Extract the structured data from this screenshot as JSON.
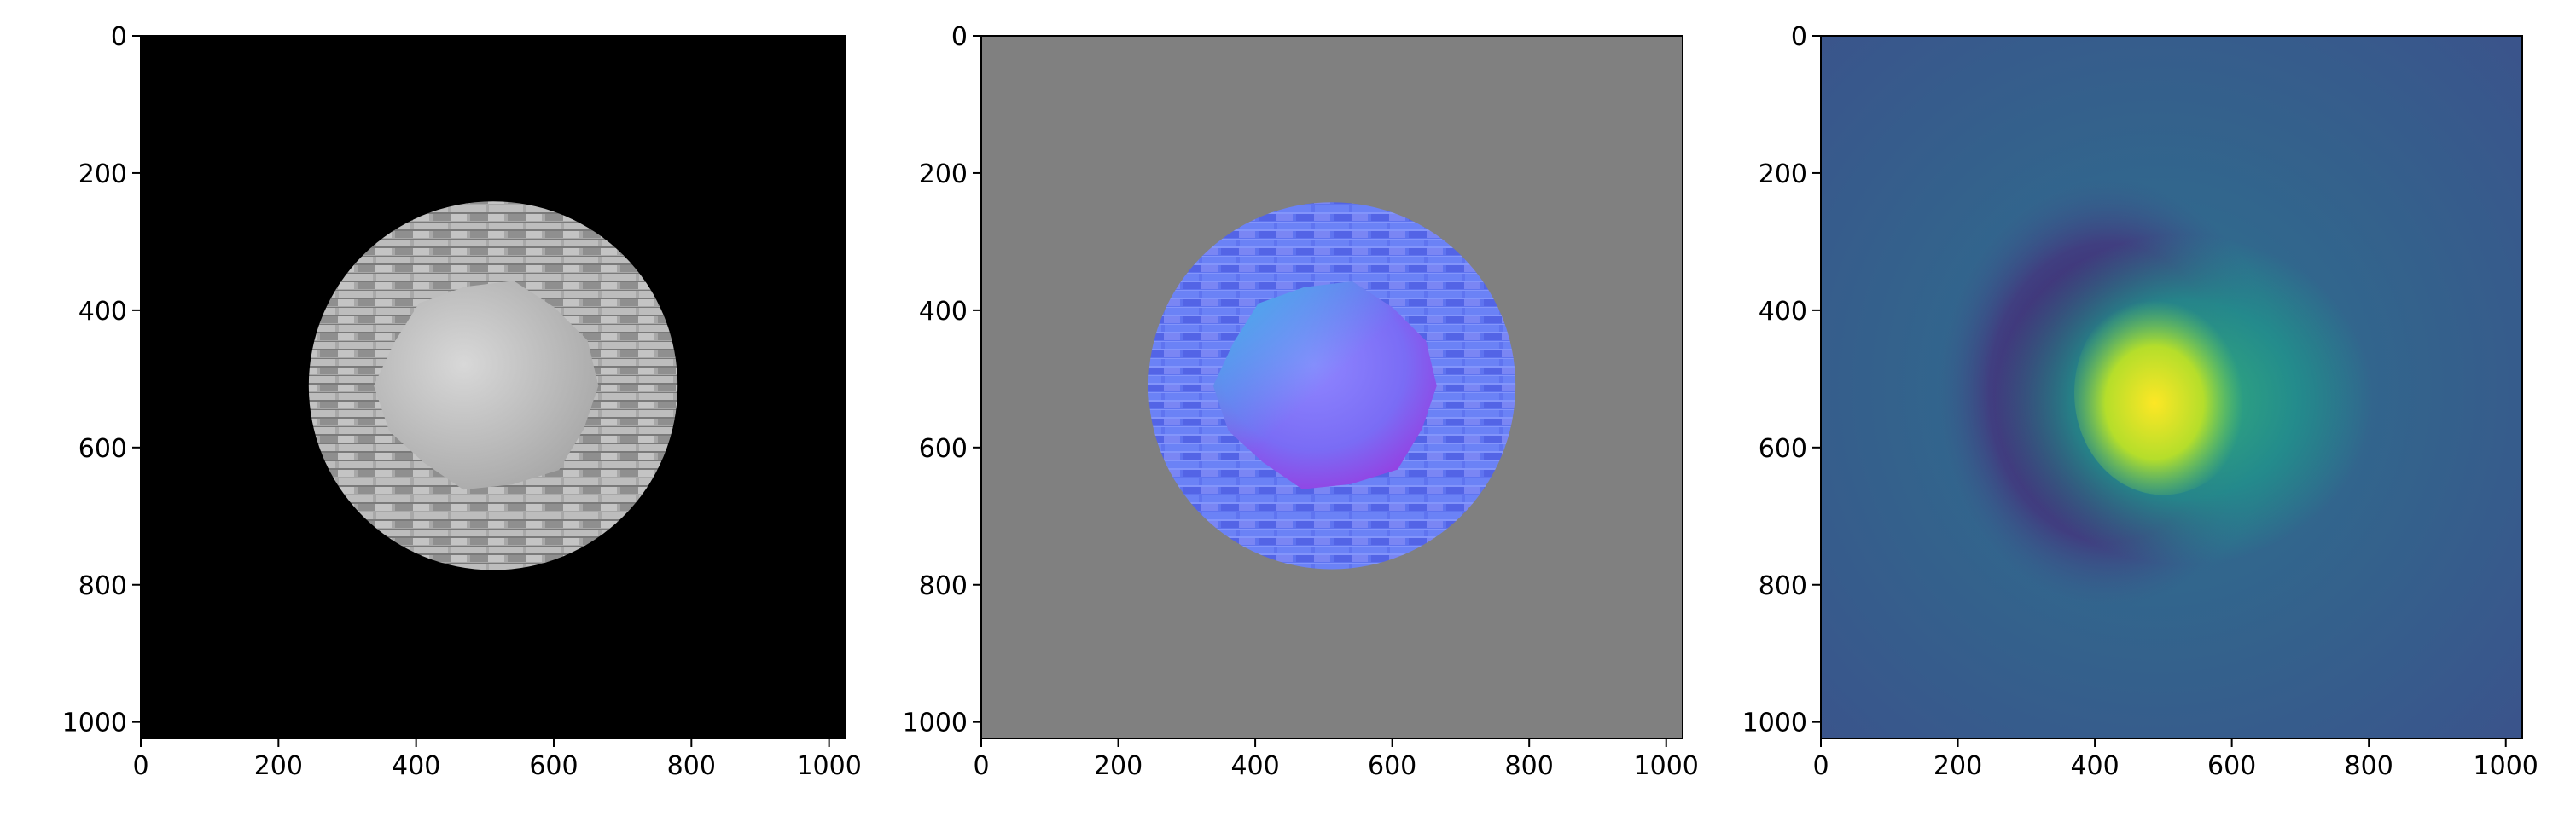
{
  "figure": {
    "layout": "1 row x 3 panels",
    "description_free": true
  },
  "chart_data": [
    {
      "type": "heatmap",
      "panel": "grayscale-render",
      "title": "",
      "xlabel": "",
      "ylabel": "",
      "xlim": [
        0,
        1024
      ],
      "ylim": [
        1024,
        0
      ],
      "xticks": [
        0,
        200,
        400,
        600,
        800,
        1000
      ],
      "yticks": [
        0,
        200,
        400,
        600,
        800,
        1000
      ],
      "xtick_labels": [
        "0",
        "200",
        "400",
        "600",
        "800",
        "1000"
      ],
      "ytick_labels": [
        "0",
        "200",
        "400",
        "600",
        "800",
        "1000"
      ],
      "image": {
        "background": "#000000",
        "disk": {
          "cx": 512,
          "cy": 510,
          "r": 268,
          "fill": "#a9a9a9",
          "pattern": "brick"
        },
        "blob": {
          "cx": 505,
          "cy": 510,
          "r": 160,
          "fill": "#bdbdbd"
        }
      }
    },
    {
      "type": "heatmap",
      "panel": "normal-map",
      "title": "",
      "xlabel": "",
      "ylabel": "",
      "xlim": [
        0,
        1024
      ],
      "ylim": [
        1024,
        0
      ],
      "xticks": [
        0,
        200,
        400,
        600,
        800,
        1000
      ],
      "yticks": [
        0,
        200,
        400,
        600,
        800,
        1000
      ],
      "xtick_labels": [
        "0",
        "200",
        "400",
        "600",
        "800",
        "1000"
      ],
      "ytick_labels": [
        "0",
        "200",
        "400",
        "600",
        "800",
        "1000"
      ],
      "image": {
        "background": "#808080",
        "disk": {
          "cx": 512,
          "cy": 510,
          "r": 268,
          "fill": "#6f78f2",
          "pattern": "brick"
        },
        "blob": {
          "cx": 505,
          "cy": 510,
          "r": 160,
          "fill": "#8f7cf8"
        }
      }
    },
    {
      "type": "heatmap",
      "panel": "depth-map-viridis",
      "title": "",
      "xlabel": "",
      "ylabel": "",
      "xlim": [
        0,
        1024
      ],
      "ylim": [
        1024,
        0
      ],
      "xticks": [
        0,
        200,
        400,
        600,
        800,
        1000
      ],
      "yticks": [
        0,
        200,
        400,
        600,
        800,
        1000
      ],
      "xtick_labels": [
        "0",
        "200",
        "400",
        "600",
        "800",
        "1000"
      ],
      "ytick_labels": [
        "0",
        "200",
        "400",
        "600",
        "800",
        "1000"
      ],
      "colormap": "viridis",
      "image": {
        "background": "#33578c",
        "dark_ring": {
          "cx": 420,
          "cy": 520,
          "r": 250,
          "fill": "#440154"
        },
        "glow": {
          "cx": 530,
          "cy": 530,
          "r": 230,
          "fill": "#21918c"
        },
        "hot": {
          "cx": 500,
          "cy": 520,
          "r": 130,
          "fill": "#fde725"
        }
      }
    }
  ]
}
